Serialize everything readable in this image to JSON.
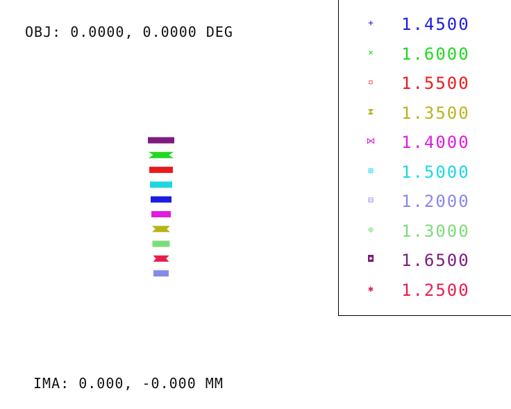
{
  "header": {
    "obj": "OBJ: 0.0000, 0.0000 DEG"
  },
  "footer": {
    "ima": "IMA: 0.000, -0.000 MM"
  },
  "legend": [
    {
      "symbol": "+",
      "value": "1.4500",
      "color": "#1c1ce0"
    },
    {
      "symbol": "×",
      "value": "1.6000",
      "color": "#22d822"
    },
    {
      "symbol": "▫",
      "value": "1.5500",
      "color": "#e81c1c"
    },
    {
      "symbol": "⧗",
      "value": "1.3500",
      "color": "#b8b41c"
    },
    {
      "symbol": "⋈",
      "value": "1.4000",
      "color": "#e01ce0"
    },
    {
      "symbol": "⊞",
      "value": "1.5000",
      "color": "#1cd8e0"
    },
    {
      "symbol": "⊟",
      "value": "1.2000",
      "color": "#8888e8"
    },
    {
      "symbol": "⊕",
      "value": "1.3000",
      "color": "#7cdc7c"
    },
    {
      "symbol": "◘",
      "value": "1.6500",
      "color": "#7c1c7c"
    },
    {
      "symbol": "✱",
      "value": "1.2500",
      "color": "#e81c50"
    }
  ],
  "chart_data": {
    "type": "scatter",
    "series": [
      {
        "value": "1.6500",
        "color": "#7c1c7c",
        "spot_width": 38,
        "shape": "rect"
      },
      {
        "value": "1.6000",
        "color": "#22d822",
        "spot_width": 36,
        "shape": "bowtie"
      },
      {
        "value": "1.5500",
        "color": "#e81c1c",
        "spot_width": 34,
        "shape": "rect"
      },
      {
        "value": "1.5000",
        "color": "#1cd8e0",
        "spot_width": 32,
        "shape": "rect"
      },
      {
        "value": "1.4500",
        "color": "#1c1ce0",
        "spot_width": 30,
        "shape": "rect"
      },
      {
        "value": "1.4000",
        "color": "#e01ce0",
        "spot_width": 28,
        "shape": "rect"
      },
      {
        "value": "1.3500",
        "color": "#b8b41c",
        "spot_width": 26,
        "shape": "bowtie"
      },
      {
        "value": "1.3000",
        "color": "#7cdc7c",
        "spot_width": 25,
        "shape": "rect"
      },
      {
        "value": "1.2500",
        "color": "#e81c50",
        "spot_width": 23,
        "shape": "bowtie"
      },
      {
        "value": "1.2000",
        "color": "#8888e8",
        "spot_width": 22,
        "shape": "rect"
      }
    ]
  }
}
